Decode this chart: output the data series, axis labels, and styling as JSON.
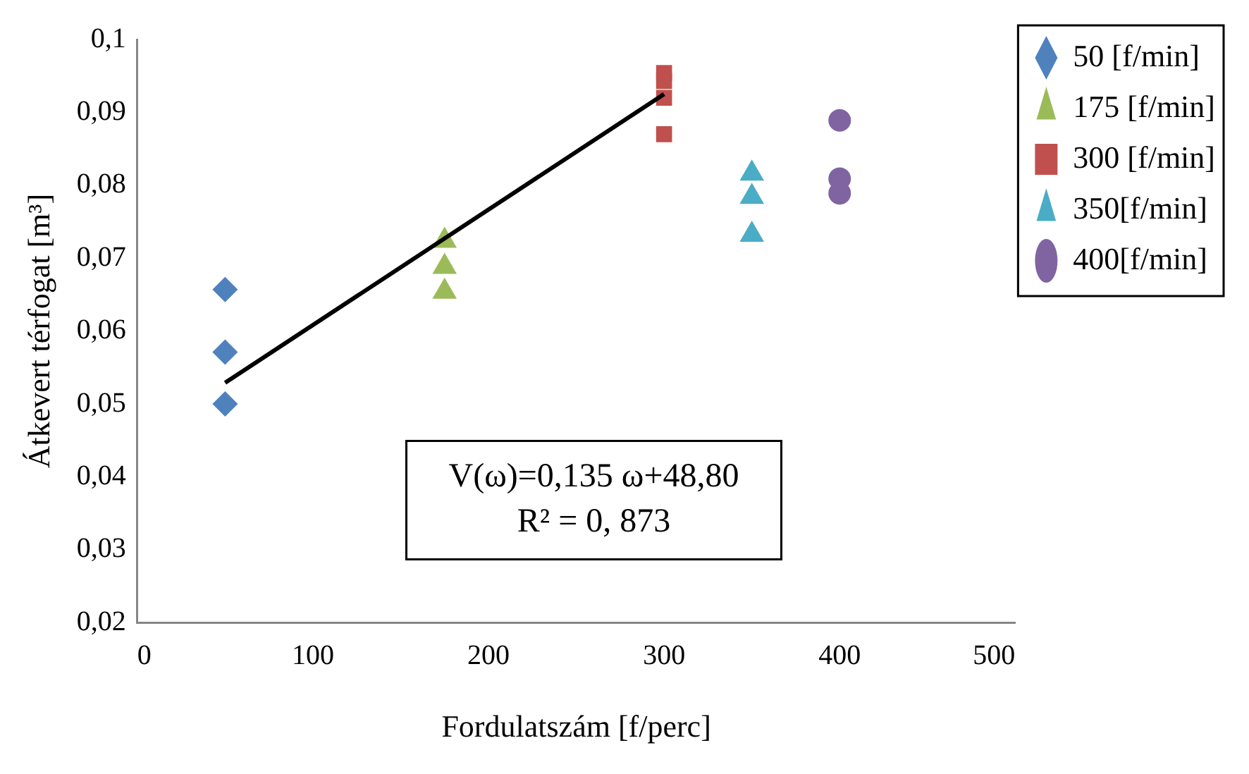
{
  "chart_data": {
    "type": "scatter",
    "xlabel": "Fordulatszám [f/perc]",
    "ylabel": "Átkevert térfogat [m³]",
    "xlim": [
      0,
      500
    ],
    "xticks": [
      0,
      100,
      200,
      300,
      400,
      500
    ],
    "ylim": [
      0.02,
      0.1
    ],
    "yticks": [
      {
        "value": 0.02,
        "label": "0,02"
      },
      {
        "value": 0.03,
        "label": "0,03"
      },
      {
        "value": 0.04,
        "label": "0,04"
      },
      {
        "value": 0.05,
        "label": "0,05"
      },
      {
        "value": 0.06,
        "label": "0,06"
      },
      {
        "value": 0.07,
        "label": "0,07"
      },
      {
        "value": 0.08,
        "label": "0,08"
      },
      {
        "value": 0.09,
        "label": "0,09"
      },
      {
        "value": 0.1,
        "label": "0,1"
      }
    ],
    "grid": false,
    "legend": "right",
    "series": [
      {
        "name": "50 [f/min]",
        "color": "#4f81bd",
        "marker": "diamond",
        "x": [
          50,
          50,
          50
        ],
        "values": [
          0.0657,
          0.0571,
          0.05
        ]
      },
      {
        "name": "175 [f/min]",
        "color": "#9bbb59",
        "marker": "triangle",
        "x": [
          175,
          175,
          175
        ],
        "values": [
          0.0724,
          0.0688,
          0.0654
        ]
      },
      {
        "name": "300 [f/min]",
        "color": "#c0504d",
        "marker": "square",
        "x": [
          300,
          300,
          300,
          300
        ],
        "values": [
          0.0954,
          0.0943,
          0.092,
          0.087
        ]
      },
      {
        "name": "350[f/min]",
        "color": "#4bacc6",
        "marker": "triangle",
        "x": [
          350,
          350,
          350
        ],
        "values": [
          0.0816,
          0.0784,
          0.0732
        ]
      },
      {
        "name": "400[f/min]",
        "color": "#8064a2",
        "marker": "circle",
        "x": [
          400,
          400,
          400
        ],
        "values": [
          0.0889,
          0.0809,
          0.0789
        ]
      },
      {
        "type": "line",
        "color": "#000000",
        "marker": "none",
        "x": [
          50,
          300
        ],
        "values": [
          0.0529,
          0.0925
        ]
      }
    ],
    "annotations": [
      "V(ω)=0,135 ω+48,80",
      "R² = 0, 873"
    ]
  }
}
